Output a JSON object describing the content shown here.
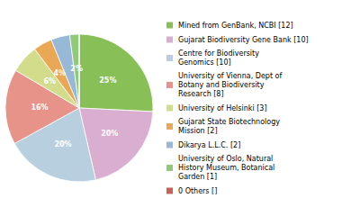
{
  "chart_data": {
    "type": "pie",
    "categories": [
      "Mined from GenBank, NCBI [12]",
      "Gujarat Biodiversity Gene Bank [10]",
      "Centre for Biodiversity\nGenomics [10]",
      "University of Vienna, Dept of\nBotany and Biodiversity\nResearch [8]",
      "University of Helsinki [3]",
      "Gujarat State Biotechnology\nMission [2]",
      "Dikarya L.L.C. [2]",
      "University of Oslo, Natural\nHistory Museum, Botanical\nGarden [1]",
      "0 Others []"
    ],
    "values": [
      25,
      20,
      20,
      16,
      6,
      4,
      4,
      2,
      0
    ],
    "value_labels": [
      "25%",
      "20%",
      "20%",
      "16%",
      "6%",
      "4%",
      "4%",
      "2%",
      null
    ],
    "colors": [
      "#88c057",
      "#d9aed0",
      "#b8cfe0",
      "#e8938a",
      "#d2dc8a",
      "#e8a855",
      "#98b8d8",
      "#92c87a",
      "#cc6055"
    ],
    "data_labels": true,
    "legend": "right"
  }
}
